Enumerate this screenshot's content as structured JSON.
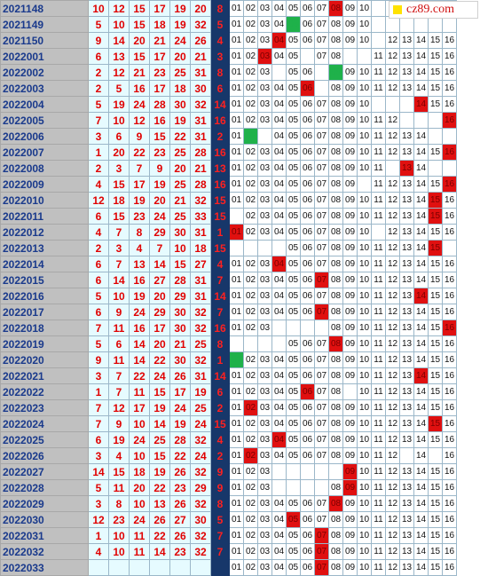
{
  "logo": {
    "text": "cz89.com"
  },
  "columns": {
    "blue_labels": [
      "01",
      "02",
      "03",
      "04",
      "05",
      "06",
      "07",
      "08",
      "09",
      "10",
      "11",
      "12",
      "13",
      "14",
      "15",
      "16"
    ]
  },
  "colors": {
    "hit_blue": "#e01010",
    "hit_repeat": "#1fb14a",
    "number_red": "#e00000",
    "blue_col_bg": "#17376a"
  },
  "rows": [
    {
      "issue": "2021148",
      "reds": [
        "10",
        "12",
        "15",
        "17",
        "19",
        "20"
      ],
      "blue": "8",
      "visible": [
        1,
        2,
        3,
        4,
        5,
        6,
        7,
        8,
        9,
        10
      ],
      "hit": 8,
      "hit_color": "red"
    },
    {
      "issue": "2021149",
      "reds": [
        "5",
        "10",
        "15",
        "18",
        "19",
        "32"
      ],
      "blue": "5",
      "visible": [
        1,
        2,
        3,
        4,
        5,
        6,
        7,
        8,
        9,
        10
      ],
      "hit": 5,
      "hit_color": "green"
    },
    {
      "issue": "2021150",
      "reds": [
        "9",
        "14",
        "20",
        "21",
        "24",
        "26"
      ],
      "blue": "4",
      "visible": [
        1,
        2,
        3,
        4,
        5,
        6,
        7,
        8,
        9,
        10,
        12,
        13,
        14,
        15,
        16
      ],
      "hit": 4,
      "hit_color": "red"
    },
    {
      "issue": "2022001",
      "reds": [
        "6",
        "13",
        "15",
        "17",
        "20",
        "21"
      ],
      "blue": "3",
      "visible": [
        1,
        2,
        3,
        4,
        5,
        7,
        8,
        11,
        12,
        13,
        14,
        15,
        16
      ],
      "hit": 3,
      "hit_color": "red"
    },
    {
      "issue": "2022002",
      "reds": [
        "2",
        "12",
        "21",
        "23",
        "25",
        "31"
      ],
      "blue": "8",
      "visible": [
        1,
        2,
        3,
        5,
        6,
        8,
        9,
        10,
        11,
        12,
        13,
        14,
        15,
        16
      ],
      "hit": 8,
      "hit_color": "green"
    },
    {
      "issue": "2022003",
      "reds": [
        "2",
        "5",
        "16",
        "17",
        "18",
        "30"
      ],
      "blue": "6",
      "visible": [
        1,
        2,
        3,
        4,
        5,
        6,
        8,
        9,
        10,
        11,
        12,
        13,
        14,
        15,
        16
      ],
      "hit": 6,
      "hit_color": "red"
    },
    {
      "issue": "2022004",
      "reds": [
        "5",
        "19",
        "24",
        "28",
        "30",
        "32"
      ],
      "blue": "14",
      "visible": [
        1,
        2,
        3,
        4,
        5,
        6,
        7,
        8,
        9,
        10,
        14,
        15,
        16
      ],
      "hit": 14,
      "hit_color": "red"
    },
    {
      "issue": "2022005",
      "reds": [
        "7",
        "10",
        "12",
        "16",
        "19",
        "31"
      ],
      "blue": "16",
      "visible": [
        1,
        2,
        3,
        4,
        5,
        6,
        7,
        8,
        9,
        10,
        11,
        12,
        16
      ],
      "hit": 16,
      "hit_color": "red"
    },
    {
      "issue": "2022006",
      "reds": [
        "3",
        "6",
        "9",
        "15",
        "22",
        "31"
      ],
      "blue": "2",
      "visible": [
        1,
        2,
        4,
        5,
        6,
        7,
        8,
        9,
        10,
        11,
        12,
        13,
        14
      ],
      "hit": 2,
      "hit_color": "green"
    },
    {
      "issue": "2022007",
      "reds": [
        "1",
        "20",
        "22",
        "23",
        "25",
        "28"
      ],
      "blue": "16",
      "visible": [
        1,
        2,
        3,
        4,
        5,
        6,
        7,
        8,
        9,
        10,
        11,
        12,
        13,
        14,
        15,
        16
      ],
      "hit": 16,
      "hit_color": "red"
    },
    {
      "issue": "2022008",
      "reds": [
        "2",
        "3",
        "7",
        "9",
        "20",
        "21"
      ],
      "blue": "13",
      "visible": [
        1,
        2,
        3,
        4,
        5,
        6,
        7,
        8,
        9,
        10,
        11,
        13,
        14
      ],
      "hit": 13,
      "hit_color": "red"
    },
    {
      "issue": "2022009",
      "reds": [
        "4",
        "15",
        "17",
        "19",
        "25",
        "28"
      ],
      "blue": "16",
      "visible": [
        1,
        2,
        3,
        4,
        5,
        6,
        7,
        8,
        9,
        11,
        12,
        13,
        14,
        15,
        16
      ],
      "hit": 16,
      "hit_color": "red"
    },
    {
      "issue": "2022010",
      "reds": [
        "12",
        "18",
        "19",
        "20",
        "21",
        "32"
      ],
      "blue": "15",
      "visible": [
        1,
        2,
        3,
        4,
        5,
        6,
        7,
        8,
        9,
        10,
        11,
        12,
        13,
        14,
        15,
        16
      ],
      "hit": 15,
      "hit_color": "red"
    },
    {
      "issue": "2022011",
      "reds": [
        "6",
        "15",
        "23",
        "24",
        "25",
        "33"
      ],
      "blue": "15",
      "visible": [
        2,
        3,
        4,
        5,
        6,
        7,
        8,
        9,
        10,
        11,
        12,
        13,
        14,
        15,
        16
      ],
      "hit": 15,
      "hit_color": "red"
    },
    {
      "issue": "2022012",
      "reds": [
        "4",
        "7",
        "8",
        "29",
        "30",
        "31"
      ],
      "blue": "1",
      "visible": [
        1,
        2,
        3,
        4,
        5,
        6,
        7,
        8,
        9,
        10,
        12,
        13,
        14,
        15,
        16
      ],
      "hit": 1,
      "hit_color": "red"
    },
    {
      "issue": "2022013",
      "reds": [
        "2",
        "3",
        "4",
        "7",
        "10",
        "18"
      ],
      "blue": "15",
      "visible": [
        5,
        6,
        7,
        8,
        9,
        10,
        11,
        12,
        13,
        14,
        15
      ],
      "hit": 15,
      "hit_color": "red"
    },
    {
      "issue": "2022014",
      "reds": [
        "6",
        "7",
        "13",
        "14",
        "15",
        "27"
      ],
      "blue": "4",
      "visible": [
        1,
        2,
        3,
        4,
        5,
        6,
        7,
        8,
        9,
        10,
        11,
        12,
        13,
        14,
        15,
        16
      ],
      "hit": 4,
      "hit_color": "red"
    },
    {
      "issue": "2022015",
      "reds": [
        "6",
        "14",
        "16",
        "27",
        "28",
        "31"
      ],
      "blue": "7",
      "visible": [
        1,
        2,
        3,
        4,
        5,
        6,
        7,
        8,
        9,
        10,
        11,
        12,
        13,
        14,
        15,
        16
      ],
      "hit": 7,
      "hit_color": "red"
    },
    {
      "issue": "2022016",
      "reds": [
        "5",
        "10",
        "19",
        "20",
        "29",
        "31"
      ],
      "blue": "14",
      "visible": [
        1,
        2,
        3,
        4,
        5,
        6,
        7,
        8,
        9,
        10,
        11,
        12,
        13,
        14,
        15,
        16
      ],
      "hit": 14,
      "hit_color": "red"
    },
    {
      "issue": "2022017",
      "reds": [
        "6",
        "9",
        "24",
        "29",
        "30",
        "32"
      ],
      "blue": "7",
      "visible": [
        1,
        2,
        3,
        4,
        5,
        6,
        7,
        8,
        9,
        10,
        11,
        12,
        13,
        14,
        15,
        16
      ],
      "hit": 7,
      "hit_color": "red"
    },
    {
      "issue": "2022018",
      "reds": [
        "7",
        "11",
        "16",
        "17",
        "30",
        "32"
      ],
      "blue": "16",
      "visible": [
        1,
        2,
        3,
        8,
        9,
        10,
        11,
        12,
        13,
        14,
        15,
        16
      ],
      "hit": 16,
      "hit_color": "red"
    },
    {
      "issue": "2022019",
      "reds": [
        "5",
        "6",
        "14",
        "20",
        "21",
        "25"
      ],
      "blue": "8",
      "visible": [
        5,
        6,
        7,
        8,
        9,
        10,
        11,
        12,
        13,
        14,
        15,
        16
      ],
      "hit": 8,
      "hit_color": "red"
    },
    {
      "issue": "2022020",
      "reds": [
        "9",
        "11",
        "14",
        "22",
        "30",
        "32"
      ],
      "blue": "1",
      "visible": [
        1,
        2,
        3,
        4,
        5,
        6,
        7,
        8,
        9,
        10,
        11,
        12,
        13,
        14,
        15,
        16
      ],
      "hit": 1,
      "hit_color": "green"
    },
    {
      "issue": "2022021",
      "reds": [
        "3",
        "7",
        "22",
        "24",
        "26",
        "31"
      ],
      "blue": "14",
      "visible": [
        1,
        2,
        3,
        4,
        5,
        6,
        7,
        8,
        9,
        10,
        11,
        12,
        13,
        14,
        15,
        16
      ],
      "hit": 14,
      "hit_color": "red"
    },
    {
      "issue": "2022022",
      "reds": [
        "1",
        "7",
        "11",
        "15",
        "17",
        "19"
      ],
      "blue": "6",
      "visible": [
        1,
        2,
        3,
        4,
        5,
        6,
        7,
        8,
        10,
        11,
        12,
        13,
        14,
        15,
        16
      ],
      "hit": 6,
      "hit_color": "red"
    },
    {
      "issue": "2022023",
      "reds": [
        "7",
        "12",
        "17",
        "19",
        "24",
        "25"
      ],
      "blue": "2",
      "visible": [
        1,
        2,
        3,
        4,
        5,
        6,
        7,
        8,
        9,
        10,
        11,
        12,
        13,
        14,
        15,
        16
      ],
      "hit": 2,
      "hit_color": "red"
    },
    {
      "issue": "2022024",
      "reds": [
        "7",
        "9",
        "10",
        "14",
        "19",
        "24"
      ],
      "blue": "15",
      "visible": [
        1,
        2,
        3,
        4,
        5,
        6,
        7,
        8,
        9,
        10,
        11,
        12,
        13,
        14,
        15,
        16
      ],
      "hit": 15,
      "hit_color": "red"
    },
    {
      "issue": "2022025",
      "reds": [
        "6",
        "19",
        "24",
        "25",
        "28",
        "32"
      ],
      "blue": "4",
      "visible": [
        1,
        2,
        3,
        4,
        5,
        6,
        7,
        8,
        9,
        10,
        11,
        12,
        13,
        14,
        15,
        16
      ],
      "hit": 4,
      "hit_color": "red"
    },
    {
      "issue": "2022026",
      "reds": [
        "3",
        "4",
        "10",
        "15",
        "22",
        "24"
      ],
      "blue": "2",
      "visible": [
        1,
        2,
        3,
        4,
        5,
        6,
        7,
        8,
        9,
        10,
        11,
        12,
        14,
        16
      ],
      "hit": 2,
      "hit_color": "red"
    },
    {
      "issue": "2022027",
      "reds": [
        "14",
        "15",
        "18",
        "19",
        "26",
        "32"
      ],
      "blue": "9",
      "visible": [
        1,
        2,
        3,
        9,
        10,
        11,
        12,
        13,
        14,
        15,
        16
      ],
      "hit": 9,
      "hit_color": "red"
    },
    {
      "issue": "2022028",
      "reds": [
        "5",
        "11",
        "20",
        "22",
        "23",
        "29"
      ],
      "blue": "9",
      "visible": [
        1,
        2,
        3,
        8,
        9,
        10,
        11,
        12,
        13,
        14,
        15,
        16
      ],
      "hit": 9,
      "hit_color": "red"
    },
    {
      "issue": "2022029",
      "reds": [
        "3",
        "8",
        "10",
        "13",
        "26",
        "32"
      ],
      "blue": "8",
      "visible": [
        1,
        2,
        3,
        4,
        5,
        6,
        7,
        8,
        9,
        10,
        11,
        12,
        13,
        14,
        15,
        16
      ],
      "hit": 8,
      "hit_color": "red"
    },
    {
      "issue": "2022030",
      "reds": [
        "12",
        "23",
        "24",
        "26",
        "27",
        "30"
      ],
      "blue": "5",
      "visible": [
        1,
        2,
        3,
        4,
        5,
        6,
        7,
        8,
        9,
        10,
        11,
        12,
        13,
        14,
        15,
        16
      ],
      "hit": 5,
      "hit_color": "red"
    },
    {
      "issue": "2022031",
      "reds": [
        "1",
        "10",
        "11",
        "22",
        "26",
        "32"
      ],
      "blue": "7",
      "visible": [
        1,
        2,
        3,
        4,
        5,
        6,
        7,
        8,
        9,
        10,
        11,
        12,
        13,
        14,
        15,
        16
      ],
      "hit": 7,
      "hit_color": "red"
    },
    {
      "issue": "2022032",
      "reds": [
        "4",
        "10",
        "11",
        "14",
        "23",
        "32"
      ],
      "blue": "7",
      "visible": [
        1,
        2,
        3,
        4,
        5,
        6,
        7,
        8,
        9,
        10,
        11,
        12,
        13,
        14,
        15,
        16
      ],
      "hit": 7,
      "hit_color": "red"
    },
    {
      "issue": "2022033",
      "reds": [
        "",
        "",
        "",
        "",
        "",
        ""
      ],
      "blue": "",
      "visible": [
        1,
        2,
        3,
        4,
        5,
        6,
        7,
        8,
        9,
        10,
        11,
        12,
        13,
        14,
        15,
        16
      ],
      "hit": 7,
      "hit_color": "red"
    }
  ]
}
